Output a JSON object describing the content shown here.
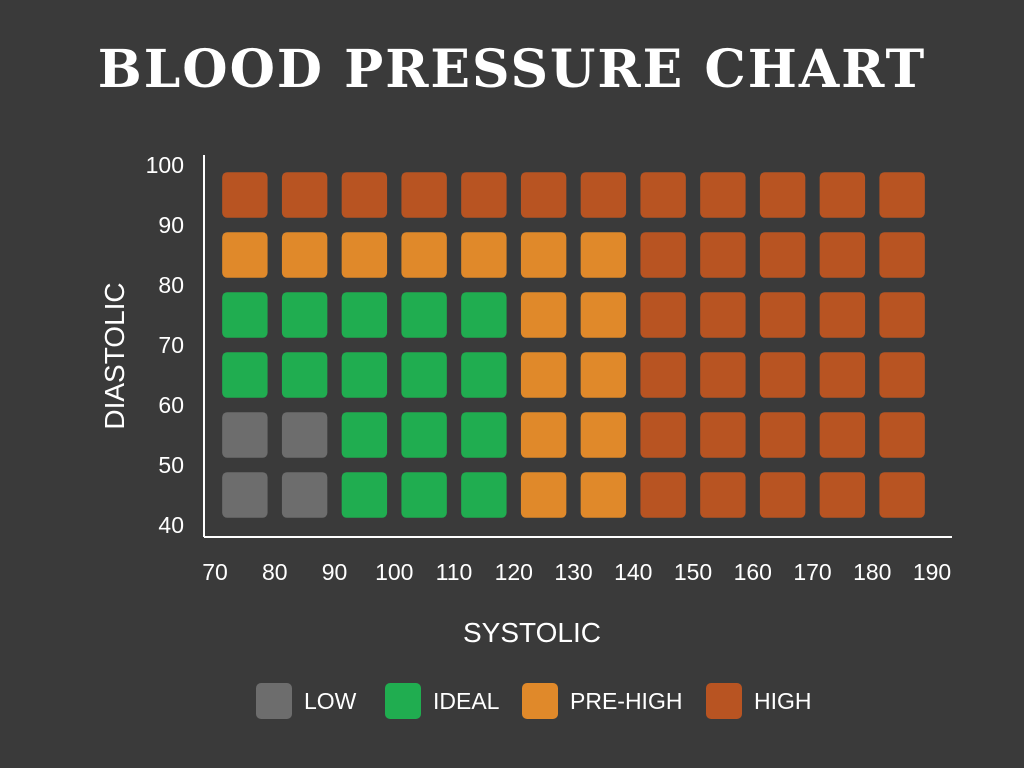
{
  "title": "BLOOD PRESSURE CHART",
  "colors": {
    "background": "#3a3a3a",
    "low": "#6d6d6d",
    "ideal": "#20ad50",
    "pre_high": "#e0892a",
    "high": "#b85422",
    "axis": "#ffffff"
  },
  "chart_data": {
    "type": "heatmap",
    "title": "BLOOD PRESSURE CHART",
    "xlabel": "SYSTOLIC",
    "ylabel": "DIASTOLIC",
    "xlim": [
      70,
      190
    ],
    "ylim": [
      40,
      100
    ],
    "x_ticks": [
      "70",
      "80",
      "90",
      "100",
      "110",
      "120",
      "130",
      "140",
      "150",
      "160",
      "170",
      "180",
      "190"
    ],
    "y_ticks": [
      "40",
      "50",
      "60",
      "70",
      "80",
      "90",
      "100"
    ],
    "x_bins": [
      [
        70,
        80
      ],
      [
        80,
        90
      ],
      [
        90,
        100
      ],
      [
        100,
        110
      ],
      [
        110,
        120
      ],
      [
        120,
        130
      ],
      [
        130,
        140
      ],
      [
        140,
        150
      ],
      [
        150,
        160
      ],
      [
        160,
        170
      ],
      [
        170,
        180
      ],
      [
        180,
        190
      ]
    ],
    "y_bins": [
      [
        40,
        50
      ],
      [
        50,
        60
      ],
      [
        60,
        70
      ],
      [
        70,
        80
      ],
      [
        80,
        90
      ],
      [
        90,
        100
      ]
    ],
    "categories": [
      "LOW",
      "IDEAL",
      "PRE-HIGH",
      "HIGH"
    ],
    "cells": [
      [
        "LOW",
        "LOW",
        "IDEAL",
        "IDEAL",
        "IDEAL",
        "PRE-HIGH",
        "PRE-HIGH",
        "HIGH",
        "HIGH",
        "HIGH",
        "HIGH",
        "HIGH"
      ],
      [
        "LOW",
        "LOW",
        "IDEAL",
        "IDEAL",
        "IDEAL",
        "PRE-HIGH",
        "PRE-HIGH",
        "HIGH",
        "HIGH",
        "HIGH",
        "HIGH",
        "HIGH"
      ],
      [
        "IDEAL",
        "IDEAL",
        "IDEAL",
        "IDEAL",
        "IDEAL",
        "PRE-HIGH",
        "PRE-HIGH",
        "HIGH",
        "HIGH",
        "HIGH",
        "HIGH",
        "HIGH"
      ],
      [
        "IDEAL",
        "IDEAL",
        "IDEAL",
        "IDEAL",
        "IDEAL",
        "PRE-HIGH",
        "PRE-HIGH",
        "HIGH",
        "HIGH",
        "HIGH",
        "HIGH",
        "HIGH"
      ],
      [
        "PRE-HIGH",
        "PRE-HIGH",
        "PRE-HIGH",
        "PRE-HIGH",
        "PRE-HIGH",
        "PRE-HIGH",
        "PRE-HIGH",
        "HIGH",
        "HIGH",
        "HIGH",
        "HIGH",
        "HIGH"
      ],
      [
        "HIGH",
        "HIGH",
        "HIGH",
        "HIGH",
        "HIGH",
        "HIGH",
        "HIGH",
        "HIGH",
        "HIGH",
        "HIGH",
        "HIGH",
        "HIGH"
      ]
    ],
    "legend": [
      {
        "label": "LOW",
        "color": "#6d6d6d"
      },
      {
        "label": "IDEAL",
        "color": "#20ad50"
      },
      {
        "label": "PRE-HIGH",
        "color": "#e0892a"
      },
      {
        "label": "HIGH",
        "color": "#b85422"
      }
    ],
    "legend_position": "bottom",
    "grid": false
  }
}
